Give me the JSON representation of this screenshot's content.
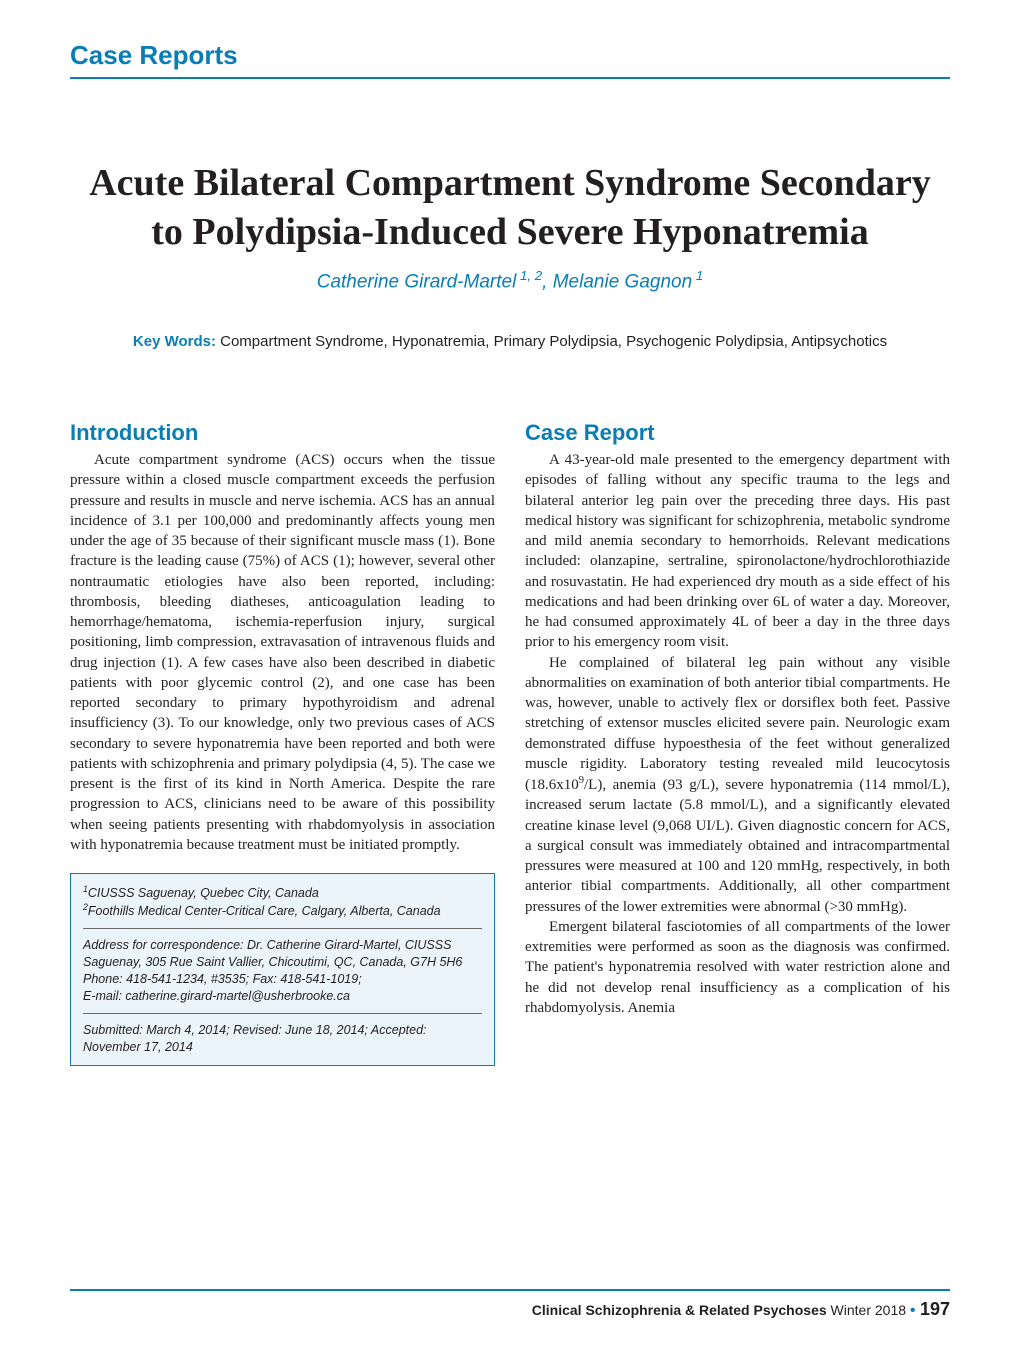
{
  "header": {
    "section_label": "Case Reports"
  },
  "title": "Acute Bilateral Compartment Syndrome Secondary to Polydipsia-Induced Severe Hyponatremia",
  "authors": "Catherine Girard-Martel 1, 2, Melanie Gagnon 1",
  "keywords": {
    "label": "Key Words:",
    "text": "  Compartment Syndrome, Hyponatremia, Primary Polydipsia, Psychogenic Polydipsia, Antipsychotics"
  },
  "left_column": {
    "heading": "Introduction",
    "paragraph": "Acute compartment syndrome (ACS) occurs when the tissue pressure within a closed muscle compartment exceeds the perfusion pressure and results in muscle and nerve ischemia. ACS has an annual incidence of 3.1 per 100,000 and predominantly affects young men under the age of 35 because of their significant muscle mass (1). Bone fracture is the leading cause (75%) of ACS (1); however, several other nontraumatic etiologies have also been reported, including: thrombosis, bleeding diatheses, anticoagulation leading to hemorrhage/hematoma, ischemia-reperfusion injury, surgical positioning, limb compression, extravasation of intravenous fluids and drug injection (1). A few cases have also been described in diabetic patients with poor glycemic control (2), and one case has been reported secondary to primary hypothyroidism and adrenal insufficiency (3). To our knowledge, only two previous cases of ACS secondary to severe hyponatremia have been reported and both were patients with schizophrenia and primary polydipsia (4, 5). The case we present is the first of its kind in North America. Despite the rare progression to ACS, clinicians need to be aware of this possibility when seeing patients presenting with rhabdomyolysis in association with hyponatremia because treatment must be initiated promptly."
  },
  "info_box": {
    "affil1": "1CIUSSS Saguenay, Quebec City, Canada",
    "affil2": "2Foothills Medical Center-Critical Care, Calgary, Alberta, Canada",
    "correspondence": "Address for correspondence: Dr. Catherine Girard-Martel, CIUSSS Saguenay, 305 Rue Saint Vallier, Chicoutimi, QC, Canada, G7H 5H6 Phone: 418-541-1234, #3535; Fax: 418-541-1019;",
    "email": "E-mail: catherine.girard-martel@usherbrooke.ca",
    "dates": "Submitted: March 4, 2014; Revised: June 18, 2014; Accepted: November 17, 2014"
  },
  "right_column": {
    "heading": "Case Report",
    "p1": "A 43-year-old male presented to the emergency department with episodes of falling without any specific trauma to the legs and bilateral anterior leg pain over the preceding three days. His past medical history was significant for schizophrenia, metabolic syndrome and mild anemia secondary to hemorrhoids. Relevant medications included: olanzapine, sertraline, spironolactone/hydrochlorothiazide and rosuvastatin. He had experienced dry mouth as a side effect of his medications and had been drinking over 6L of water a day. Moreover, he had consumed approximately 4L of beer a day in the three days prior to his emergency room visit.",
    "p2": "He complained of bilateral leg pain without any visible abnormalities on examination of both anterior tibial compartments. He was, however, unable to actively flex or dorsiflex both feet. Passive stretching of extensor muscles elicited severe pain. Neurologic exam demonstrated diffuse hypoesthesia of the feet without generalized muscle rigidity. Laboratory testing revealed mild leucocytosis (18.6x109/L), anemia (93 g/L), severe hyponatremia (114 mmol/L), increased serum lactate (5.8 mmol/L), and a significantly elevated creatine kinase level (9,068 UI/L). Given diagnostic concern for ACS, a surgical consult was immediately obtained and intracompartmental pressures were measured at 100 and 120 mmHg, respectively, in both anterior tibial compartments. Additionally, all other compartment pressures of the lower extremities were abnormal (>30 mmHg).",
    "p3": "Emergent bilateral fasciotomies of all compartments of the lower extremities were performed as soon as the diagnosis was confirmed. The patient's hyponatremia resolved with water restriction alone and he did not develop renal insufficiency as a complication of his rhabdomyolysis. Anemia"
  },
  "footer": {
    "journal": "Clinical Schizophrenia & Related Psychoses",
    "issue": "  Winter 2018",
    "page": "197"
  },
  "colors": {
    "accent": "#0a7db5",
    "text": "#231f20",
    "box_bg": "#eaf4fa",
    "page_bg": "#ffffff"
  }
}
